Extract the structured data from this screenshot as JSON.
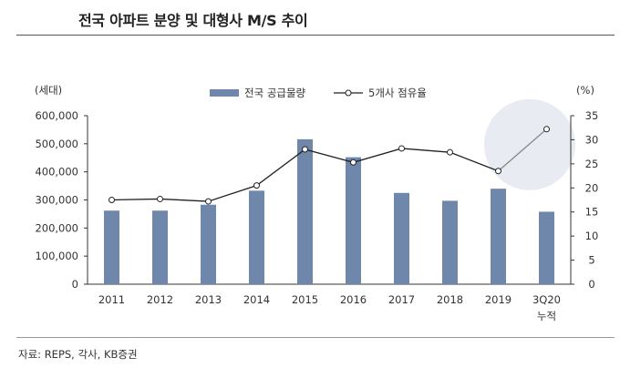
{
  "title": "전국 아파트 분양 및 대형사 M/S 추이",
  "source": "자료: REPS, 각사, KB증권",
  "colors": {
    "bar": "#6e87aa",
    "line": "#222222",
    "highlight_line": "#888888",
    "circle": "#e8ecf2",
    "axis": "#333333"
  },
  "chart_data": {
    "type": "bar+line",
    "categories": [
      "2011",
      "2012",
      "2013",
      "2014",
      "2015",
      "2016",
      "2017",
      "2018",
      "2019",
      "3Q20|누적"
    ],
    "left_axis": {
      "unit_label": "(세대)",
      "ylim": [
        0,
        600000
      ],
      "ticks": [
        "0",
        "100,000",
        "200,000",
        "300,000",
        "400,000",
        "500,000",
        "600,000"
      ]
    },
    "right_axis": {
      "unit_label": "(%)",
      "ylim": [
        0,
        35
      ],
      "ticks": [
        "0",
        "5",
        "10",
        "15",
        "20",
        "25",
        "30",
        "35"
      ]
    },
    "series": [
      {
        "name": "전국 공급물량",
        "type": "bar",
        "axis": "left",
        "values": [
          262000,
          262000,
          283000,
          333000,
          516000,
          452000,
          325000,
          297000,
          340000,
          258000
        ]
      },
      {
        "name": "5개사 점유율",
        "type": "line",
        "axis": "right",
        "values": [
          17.5,
          17.7,
          17.2,
          20.5,
          28.0,
          25.3,
          28.2,
          27.4,
          23.5,
          32.2
        ]
      }
    ],
    "legend_position": "top-center",
    "grid": false,
    "highlight": "last-segment"
  }
}
